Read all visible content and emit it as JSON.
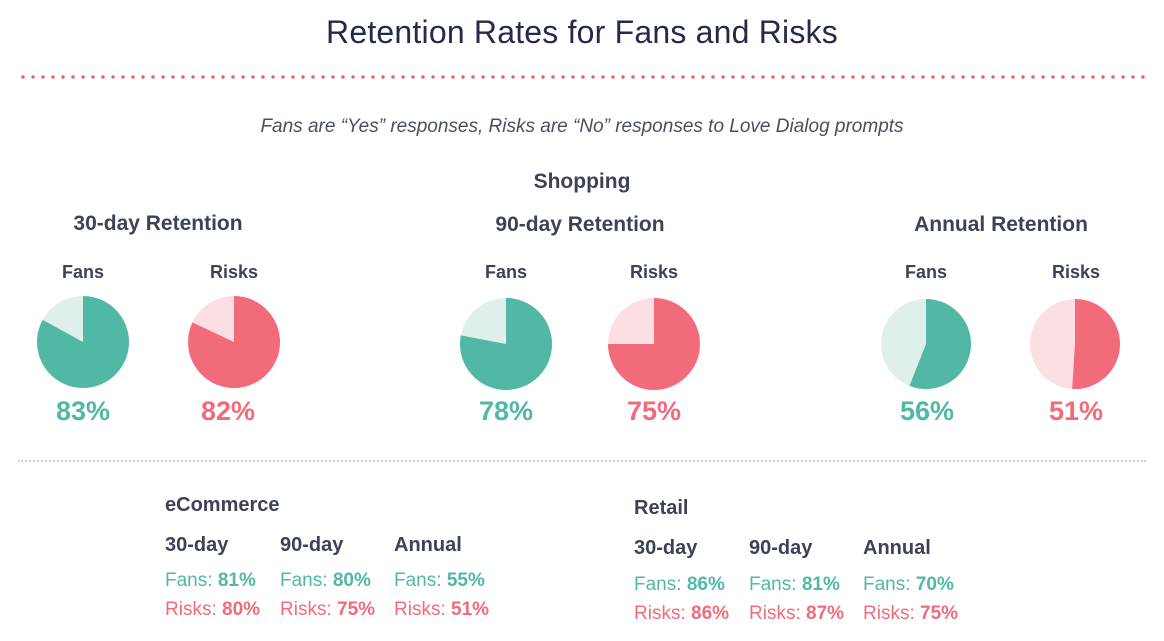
{
  "title": "Retention Rates for Fans and Risks",
  "subtitle": "Fans are “Yes” responses, Risks are “No” responses to Love Dialog prompts",
  "colors": {
    "fans": "#51b8a5",
    "fans_light": "#dff0ec",
    "risks": "#f26b7a",
    "risks_light": "#fcdfe3"
  },
  "chart_data": {
    "type": "pie",
    "section": "Shopping",
    "groups": [
      {
        "title": "30-day Retention",
        "fans_label": "Fans",
        "risks_label": "Risks",
        "fans": 83,
        "risks": 82,
        "fans_text": "83%",
        "risks_text": "82%"
      },
      {
        "title": "90-day Retention",
        "fans_label": "Fans",
        "risks_label": "Risks",
        "fans": 78,
        "risks": 75,
        "fans_text": "78%",
        "risks_text": "75%"
      },
      {
        "title": "Annual Retention",
        "fans_label": "Fans",
        "risks_label": "Risks",
        "fans": 56,
        "risks": 51,
        "fans_text": "56%",
        "risks_text": "51%"
      }
    ]
  },
  "breakdowns": [
    {
      "title": "eCommerce",
      "columns": [
        {
          "head": "30-day",
          "fans_label": "Fans:",
          "fans": "81%",
          "risks_label": "Risks:",
          "risks": "80%"
        },
        {
          "head": "90-day",
          "fans_label": "Fans:",
          "fans": "80%",
          "risks_label": "Risks:",
          "risks": "75%"
        },
        {
          "head": "Annual",
          "fans_label": "Fans:",
          "fans": "55%",
          "risks_label": "Risks:",
          "risks": "51%"
        }
      ]
    },
    {
      "title": "Retail",
      "columns": [
        {
          "head": "30-day",
          "fans_label": "Fans:",
          "fans": "86%",
          "risks_label": "Risks:",
          "risks": "86%"
        },
        {
          "head": "90-day",
          "fans_label": "Fans:",
          "fans": "81%",
          "risks_label": "Risks:",
          "risks": "87%"
        },
        {
          "head": "Annual",
          "fans_label": "Fans:",
          "fans": "70%",
          "risks_label": "Risks:",
          "risks": "75%"
        }
      ]
    }
  ]
}
